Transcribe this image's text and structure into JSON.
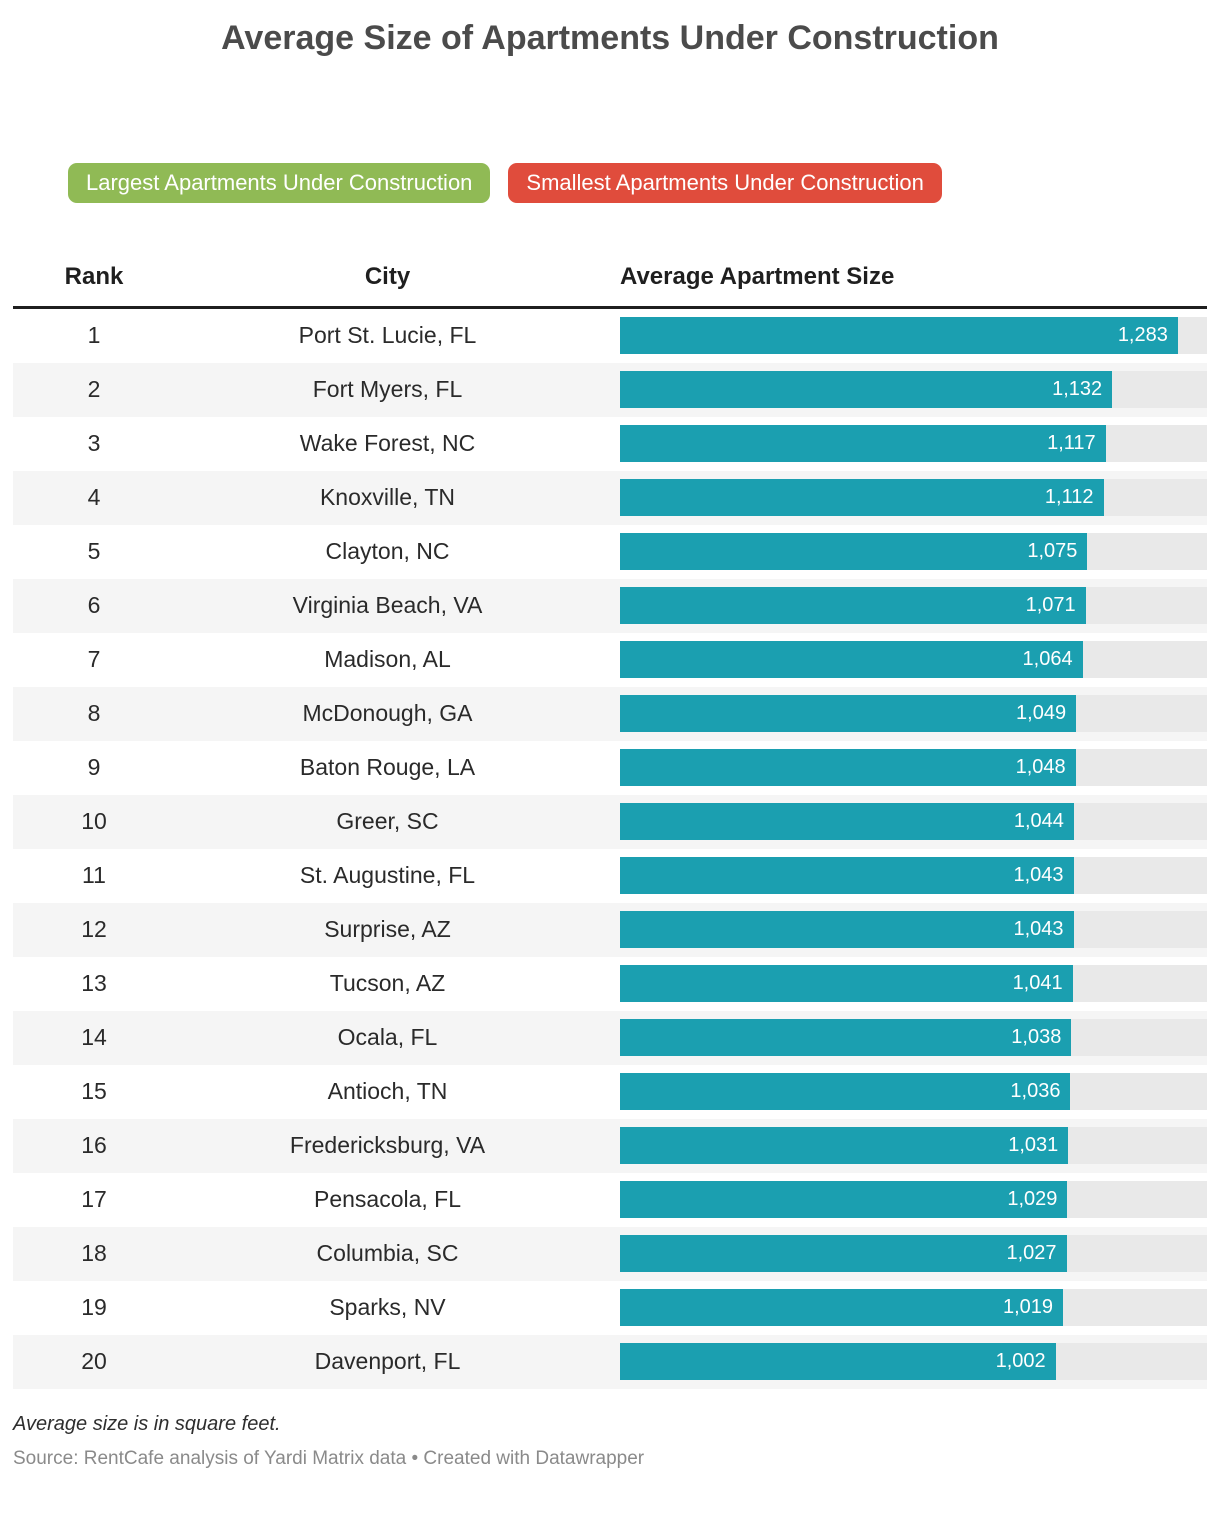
{
  "title": "Average Size of Apartments Under Construction",
  "tabs": [
    {
      "label": "Largest Apartments Under Construction",
      "color": "#90ba55",
      "active": true
    },
    {
      "label": "Smallest Apartments Under Construction",
      "color": "#e04c3c",
      "active": false
    }
  ],
  "table": {
    "headers": [
      "Rank",
      "City",
      "Average Apartment Size"
    ]
  },
  "chart_data": {
    "type": "bar",
    "title": "Average Size of Apartments Under Construction",
    "xlabel": "",
    "ylabel": "Average Apartment Size",
    "xlim": [
      0,
      1350
    ],
    "legend_position": "none",
    "grid": false,
    "bar_color": "#1b9fb0",
    "track_color": "#e9e9e9",
    "stripe_color": "#f5f5f5",
    "ranks": [
      1,
      2,
      3,
      4,
      5,
      6,
      7,
      8,
      9,
      10,
      11,
      12,
      13,
      14,
      15,
      16,
      17,
      18,
      19,
      20
    ],
    "categories": [
      "Port St. Lucie, FL",
      "Fort Myers, FL",
      "Wake Forest, NC",
      "Knoxville, TN",
      "Clayton, NC",
      "Virginia Beach, VA",
      "Madison, AL",
      "McDonough, GA",
      "Baton Rouge, LA",
      "Greer, SC",
      "St. Augustine, FL",
      "Surprise, AZ",
      "Tucson, AZ",
      "Ocala, FL",
      "Antioch, TN",
      "Fredericksburg, VA",
      "Pensacola, FL",
      "Columbia, SC",
      "Sparks, NV",
      "Davenport, FL"
    ],
    "values": [
      1283,
      1132,
      1117,
      1112,
      1075,
      1071,
      1064,
      1049,
      1048,
      1044,
      1043,
      1043,
      1041,
      1038,
      1036,
      1031,
      1029,
      1027,
      1019,
      1002
    ],
    "value_labels": [
      "1,283",
      "1,132",
      "1,117",
      "1,112",
      "1,075",
      "1,071",
      "1,064",
      "1,049",
      "1,048",
      "1,044",
      "1,043",
      "1,043",
      "1,041",
      "1,038",
      "1,036",
      "1,031",
      "1,029",
      "1,027",
      "1,019",
      "1,002"
    ]
  },
  "footnote": "Average size is in square feet.",
  "source": "Source: RentCafe analysis of Yardi Matrix data • Created with Datawrapper"
}
